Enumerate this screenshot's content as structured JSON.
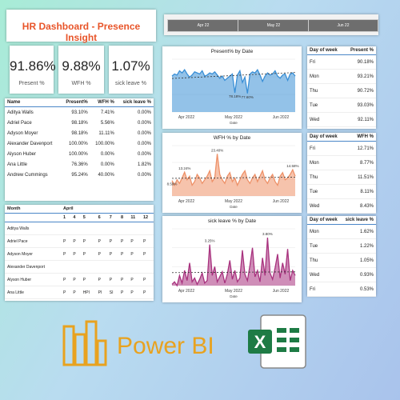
{
  "dashboard": {
    "title": "HR Dashboard - Presence Insight",
    "kpis": [
      {
        "value": "91.86%",
        "label": "Present %"
      },
      {
        "value": "9.88%",
        "label": "WFH %"
      },
      {
        "value": "1.07%",
        "label": "sick leave %"
      }
    ],
    "month_slicers": [
      "Apr 22",
      "May 22",
      "Jun 22"
    ]
  },
  "employee_table": {
    "headers": [
      "Name",
      "Present%",
      "WFH %",
      "sick leave %"
    ],
    "rows": [
      [
        "Aditya Walls",
        "93.10%",
        "7.41%",
        "0.00%"
      ],
      [
        "Adriel Pace",
        "98.18%",
        "5.56%",
        "0.00%"
      ],
      [
        "Adyson Moyer",
        "98.18%",
        "11.11%",
        "0.00%"
      ],
      [
        "Alexander Davenport",
        "100.00%",
        "100.00%",
        "0.00%"
      ],
      [
        "Alyson Huber",
        "100.00%",
        "0.00%",
        "0.00%"
      ],
      [
        "Ana Little",
        "76.36%",
        "0.00%",
        "1.82%"
      ],
      [
        "Andrew Cummings",
        "95.24%",
        "40.00%",
        "0.00%"
      ]
    ]
  },
  "attendance_matrix": {
    "month_header": "Month",
    "month": "April",
    "days": [
      "1",
      "4",
      "5",
      "6",
      "7",
      "8",
      "11",
      "12"
    ],
    "rows": [
      {
        "name": "Aditya Walls",
        "cells": [
          "",
          "",
          "",
          "",
          "",
          "",
          "",
          ""
        ]
      },
      {
        "name": "Adriel Pace",
        "cells": [
          "P",
          "P",
          "P",
          "P",
          "P",
          "P",
          "P",
          "P"
        ]
      },
      {
        "name": "Adyson Moyer",
        "cells": [
          "P",
          "P",
          "P",
          "P",
          "P",
          "P",
          "P",
          "P"
        ]
      },
      {
        "name": "Alexander Davenport",
        "cells": [
          "",
          "",
          "",
          "",
          "",
          "",
          "",
          ""
        ]
      },
      {
        "name": "Alyson Huber",
        "cells": [
          "P",
          "P",
          "P",
          "P",
          "P",
          "P",
          "P",
          "P"
        ]
      },
      {
        "name": "Ana Little",
        "cells": [
          "P",
          "P",
          "HPI",
          "PI",
          "SI",
          "P",
          "P",
          "P"
        ]
      }
    ]
  },
  "weekday_tables": [
    {
      "headers": [
        "Day of week",
        "Present %"
      ],
      "rows": [
        [
          "Fri",
          "90.18%"
        ],
        [
          "Mon",
          "93.21%"
        ],
        [
          "Thu",
          "90.72%"
        ],
        [
          "Tue",
          "93.03%"
        ],
        [
          "Wed",
          "92.11%"
        ]
      ]
    },
    {
      "headers": [
        "Day of week",
        "WFH %"
      ],
      "rows": [
        [
          "Fri",
          "12.71%"
        ],
        [
          "Mon",
          "8.77%"
        ],
        [
          "Thu",
          "11.51%"
        ],
        [
          "Tue",
          "8.11%"
        ],
        [
          "Wed",
          "8.43%"
        ]
      ]
    },
    {
      "headers": [
        "Day of week",
        "sick leave %"
      ],
      "rows": [
        [
          "Mon",
          "1.62%"
        ],
        [
          "Tue",
          "1.22%"
        ],
        [
          "Thu",
          "1.05%"
        ],
        [
          "Wed",
          "0.93%"
        ],
        [
          "Fri",
          "0.53%"
        ]
      ]
    }
  ],
  "chart_data": [
    {
      "type": "area",
      "title": "Present% by Date",
      "xlabel": "Date",
      "x_ticks": [
        "Apr 2022",
        "May 2022",
        "Jun 2022"
      ],
      "annotations": [
        "78.18%",
        "77.60%"
      ],
      "ylim": [
        60,
        110
      ],
      "series": [
        {
          "values": [
            94,
            96,
            95,
            99,
            97,
            100,
            96,
            93,
            95,
            98,
            97,
            96,
            99,
            94,
            95,
            97,
            96,
            98,
            95,
            92,
            94,
            90,
            92,
            94,
            96,
            78.18,
            95,
            99,
            88,
            93,
            77.6,
            96,
            98,
            97,
            100,
            95,
            89,
            94,
            97,
            95,
            96,
            99,
            94,
            92,
            95,
            96,
            90,
            96,
            97,
            94
          ]
        }
      ],
      "color": "#3a8fd6"
    },
    {
      "type": "area",
      "title": "WFH % by Date",
      "xlabel": "Date",
      "x_ticks": [
        "Apr 2022",
        "May 2022",
        "Jun 2022"
      ],
      "annotations": [
        "8.59%",
        "13.24%",
        "23.40%",
        "14.58%"
      ],
      "ylim": [
        0,
        28
      ],
      "series": [
        {
          "values": [
            8.59,
            6,
            9,
            7,
            10,
            13.24,
            9,
            11,
            6,
            8,
            12,
            10,
            7,
            9,
            11,
            14,
            8,
            10,
            23.4,
            12,
            9,
            7,
            11,
            13,
            8,
            10,
            6,
            9,
            12,
            14,
            9,
            7,
            10,
            12,
            8,
            11,
            14,
            9,
            7,
            10,
            12,
            8,
            6,
            11,
            13,
            9,
            10,
            12,
            14.58,
            11
          ]
        }
      ],
      "color": "#ee9168"
    },
    {
      "type": "area",
      "title": "sick leave % by Date",
      "xlabel": "Date",
      "x_ticks": [
        "Apr 2022",
        "May 2022",
        "Jun 2022"
      ],
      "annotations": [
        "3.25%",
        "3.80%"
      ],
      "ylim": [
        0,
        4.5
      ],
      "series": [
        {
          "values": [
            0.1,
            0.3,
            0.0,
            0.8,
            0.2,
            1.2,
            0.4,
            1.8,
            0.3,
            0.6,
            0.1,
            0.5,
            1.0,
            0.2,
            0.4,
            3.25,
            0.8,
            1.5,
            0.3,
            0.7,
            1.1,
            0.2,
            0.9,
            2.0,
            0.5,
            1.2,
            0.3,
            0.6,
            2.8,
            0.9,
            0.4,
            1.6,
            3.0,
            0.7,
            1.2,
            0.3,
            2.2,
            0.8,
            3.8,
            1.0,
            0.5,
            1.4,
            2.5,
            0.6,
            1.8,
            0.9,
            2.9,
            0.4,
            1.2,
            0.8
          ]
        }
      ],
      "color": "#a8327e"
    }
  ],
  "branding": {
    "powerbi_label": "Power BI",
    "powerbi_color": "#e8a21f",
    "excel_color": "#1e7b45"
  }
}
